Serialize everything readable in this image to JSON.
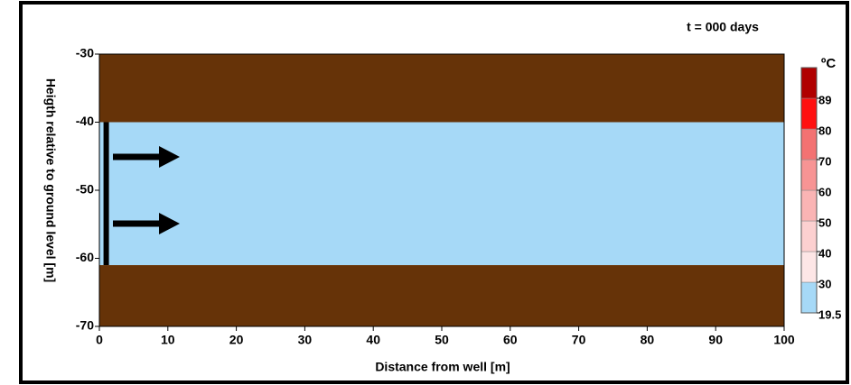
{
  "chart_data": {
    "type": "layers",
    "title": "t = 000 days",
    "xlabel": "Distance from well [m]",
    "ylabel": "Heigth relative to ground level [m]",
    "xlim": [
      0,
      100
    ],
    "xticks": [
      0,
      10,
      20,
      30,
      40,
      50,
      60,
      70,
      80,
      90,
      100
    ],
    "ylim": [
      -70,
      -30
    ],
    "yticks": [
      -30,
      -40,
      -50,
      -60,
      -70
    ],
    "layers": [
      {
        "top": -30,
        "bottom": -40,
        "color": "#663308"
      },
      {
        "top": -40,
        "bottom": -61,
        "color": "#a6d9f7"
      },
      {
        "top": -61,
        "bottom": -70,
        "color": "#663308"
      }
    ],
    "well": {
      "x": 1,
      "top": -40,
      "bottom": -61,
      "color": "#000000"
    },
    "colorbar": {
      "title": "ºC",
      "ticks": [
        19.5,
        30,
        40,
        50,
        60,
        70,
        80,
        89
      ],
      "colors": [
        "#a6d9f7",
        "#fde6e6",
        "#fcd0d0",
        "#fab4b4",
        "#f79494",
        "#f37272",
        "#ff1010",
        "#b00000"
      ]
    }
  }
}
